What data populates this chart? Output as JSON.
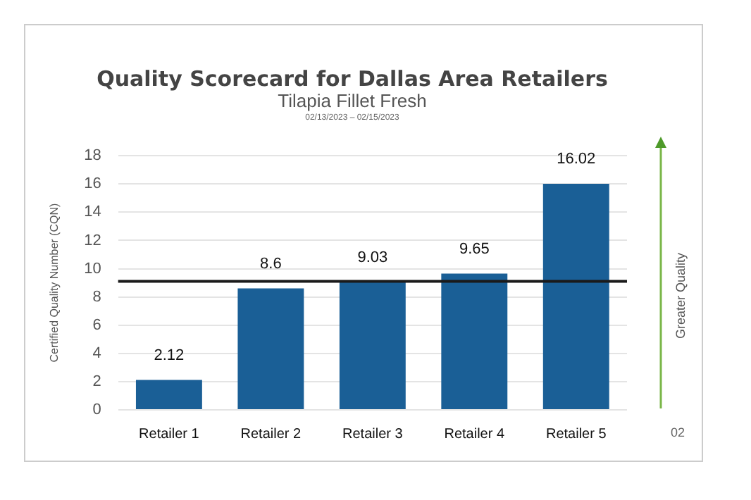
{
  "chart_data": {
    "type": "bar",
    "title": "Quality Scorecard for Dallas Area Retailers",
    "subtitle": "Tilapia Fillet Fresh",
    "ylabel": "Certified Quality Number (CQN)",
    "categories": [
      "Retailer 1",
      "Retailer 2",
      "Retailer 3",
      "Retailer 4",
      "Retailer 5"
    ],
    "values": [
      2.12,
      8.6,
      9.03,
      9.65,
      16.02
    ],
    "color": "#1a5f96",
    "ylim": [
      0,
      18
    ],
    "yticks": [
      0,
      2,
      4,
      6,
      8,
      10,
      12,
      14,
      16,
      18
    ],
    "grid": "y",
    "legend": false,
    "data_labels": true,
    "ref_lines": [
      {
        "axis": "y",
        "value": 9.1,
        "color": "#1a1a1a"
      }
    ],
    "annotations": [
      "02/13/2023 – 02/15/2023",
      "Greater Quality",
      "02"
    ]
  }
}
